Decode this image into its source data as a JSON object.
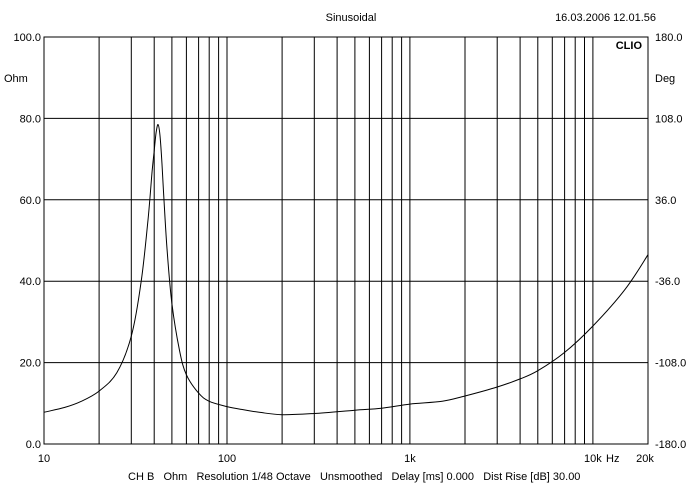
{
  "header": {
    "title": "Sinusoidal",
    "timestamp": "16.03.2006 12.01.56",
    "brand": "CLIO"
  },
  "footer": {
    "status": "CH B   Ohm   Resolution 1/48 Octave   Unsmoothed   Delay [ms] 0.000   Dist Rise [dB] 30.00"
  },
  "chart_data": {
    "type": "line",
    "title": "Sinusoidal",
    "xscale": "log",
    "xlim": [
      10,
      20000
    ],
    "ylim": [
      0,
      100
    ],
    "y2lim": [
      -180,
      180
    ],
    "grid": true,
    "yunit": "Ohm",
    "y2unit": "Deg",
    "xunit": "Hz",
    "x_tick_labels": [
      {
        "value": 10,
        "label": "10"
      },
      {
        "value": 100,
        "label": "100"
      },
      {
        "value": 1000,
        "label": "1k"
      },
      {
        "value": 10000,
        "label": "10k"
      },
      {
        "value": 20000,
        "label": "20k"
      }
    ],
    "x_minor_ticks": [
      20,
      30,
      40,
      50,
      60,
      70,
      80,
      90,
      200,
      300,
      400,
      500,
      600,
      700,
      800,
      900,
      2000,
      3000,
      4000,
      5000,
      6000,
      7000,
      8000,
      9000
    ],
    "y_ticks": [
      {
        "value": 0,
        "label": "0.0"
      },
      {
        "value": 20,
        "label": "20.0"
      },
      {
        "value": 40,
        "label": "40.0"
      },
      {
        "value": 60,
        "label": "60.0"
      },
      {
        "value": 80,
        "label": "80.0"
      },
      {
        "value": 100,
        "label": "100.0"
      }
    ],
    "y2_ticks": [
      {
        "value": -180,
        "label": "-180.0"
      },
      {
        "value": -108,
        "label": "-108.0"
      },
      {
        "value": -36,
        "label": "-36.0"
      },
      {
        "value": 36,
        "label": "36.0"
      },
      {
        "value": 108,
        "label": "108.0"
      },
      {
        "value": 180,
        "label": "180.0"
      }
    ],
    "series": [
      {
        "color": "#000000",
        "x": [
          10,
          13,
          16,
          20,
          25,
          30,
          34,
          37,
          39,
          40,
          41,
          42,
          43,
          44,
          45,
          47,
          50,
          55,
          60,
          70,
          80,
          100,
          120,
          150,
          200,
          300,
          500,
          700,
          1000,
          1500,
          2000,
          3000,
          4000,
          5000,
          7000,
          10000,
          15000,
          20000
        ],
        "y": [
          7.8,
          9.0,
          10.5,
          13.0,
          17.5,
          26.5,
          40.0,
          55.0,
          67.0,
          72.0,
          76.5,
          78.5,
          76.0,
          70.0,
          62.0,
          48.0,
          34.5,
          23.0,
          17.0,
          12.5,
          10.5,
          9.2,
          8.5,
          7.8,
          7.2,
          7.5,
          8.3,
          8.8,
          9.8,
          10.5,
          11.8,
          14.0,
          16.0,
          18.0,
          22.5,
          29.0,
          38.0,
          46.5
        ]
      }
    ]
  }
}
